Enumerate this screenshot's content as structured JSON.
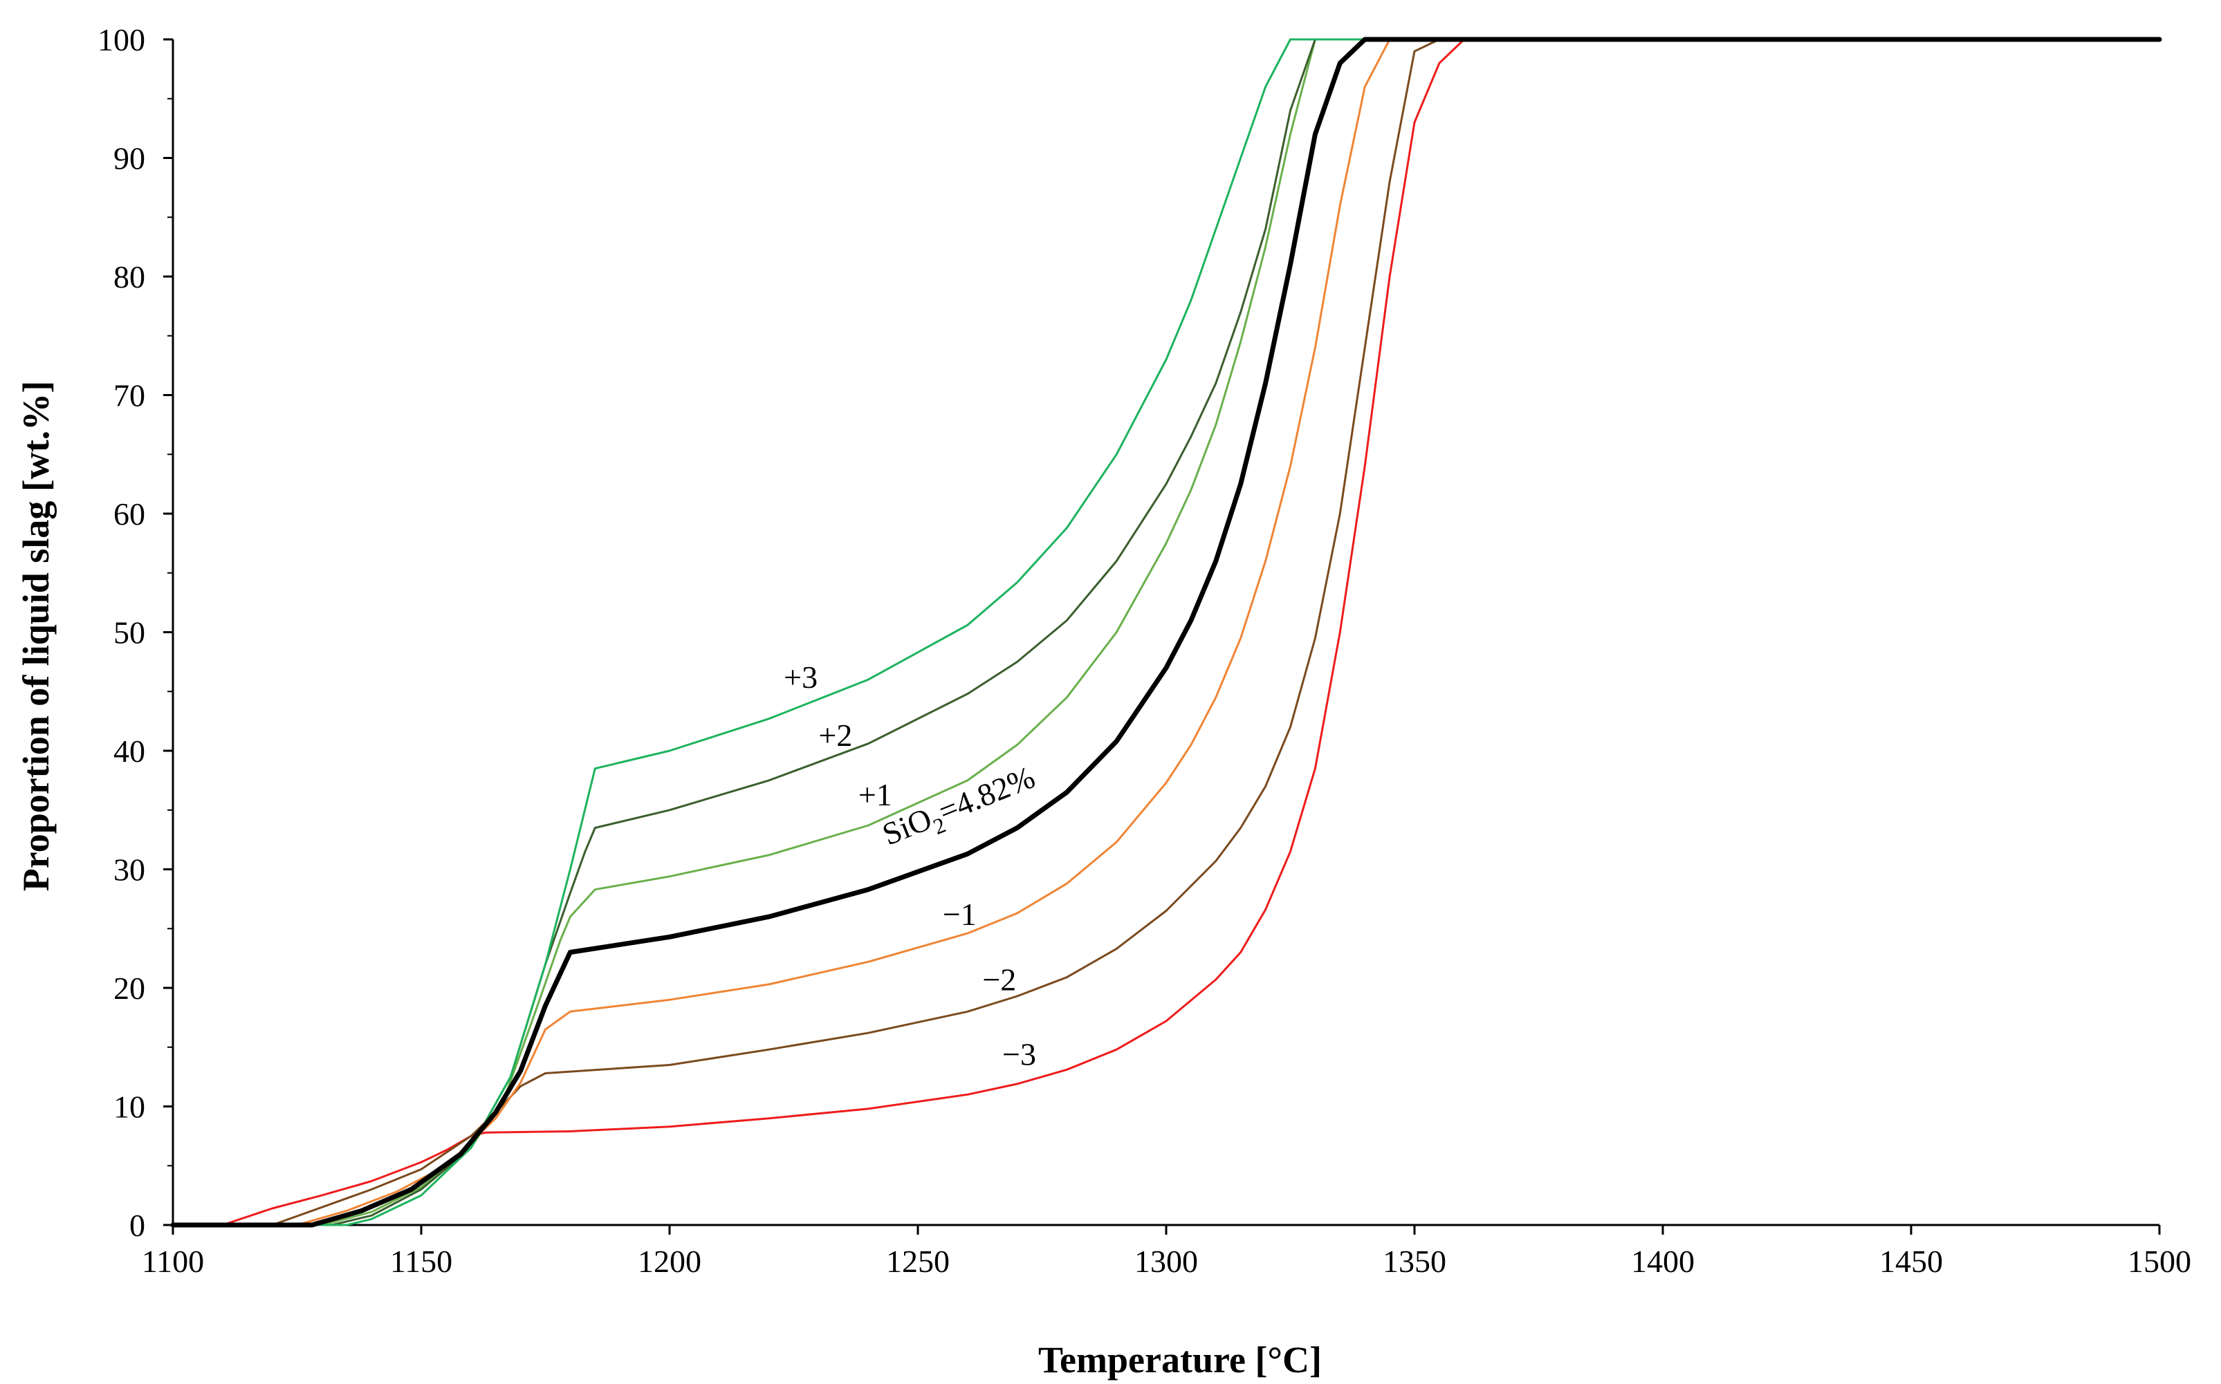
{
  "chart_data": {
    "type": "line",
    "title": "",
    "xlabel": "Temperature [°C]",
    "ylabel": "Proportion of liquid slag [wt.%]",
    "xlim": [
      1100,
      1500
    ],
    "ylim": [
      0,
      100
    ],
    "x_ticks": [
      "1100",
      "1150",
      "1200",
      "1250",
      "1300",
      "1350",
      "1400",
      "1450",
      "1500"
    ],
    "y_ticks": [
      "0",
      "10",
      "20",
      "30",
      "40",
      "50",
      "60",
      "70",
      "80",
      "90",
      "100"
    ],
    "grid": false,
    "series": [
      {
        "name": "−3",
        "label": "−3",
        "color": "#ee1c1c",
        "width": 3,
        "x": [
          1100,
          1110,
          1120,
          1130,
          1140,
          1150,
          1155,
          1160,
          1163,
          1180,
          1200,
          1220,
          1240,
          1260,
          1270,
          1280,
          1290,
          1300,
          1310,
          1315,
          1320,
          1325,
          1330,
          1335,
          1340,
          1345,
          1350,
          1355,
          1360,
          1500
        ],
        "y": [
          0,
          0,
          1.4,
          2.5,
          3.7,
          5.3,
          6.3,
          7.5,
          7.8,
          7.9,
          8.3,
          9.0,
          9.8,
          11.0,
          11.9,
          13.1,
          14.8,
          17.2,
          20.7,
          23.0,
          26.6,
          31.5,
          38.5,
          50.0,
          64.0,
          80.0,
          93.0,
          98.0,
          100,
          100
        ]
      },
      {
        "name": "−2",
        "label": "−2",
        "color": "#7b4a1e",
        "width": 3,
        "x": [
          1100,
          1120,
          1130,
          1140,
          1150,
          1160,
          1165,
          1170,
          1175,
          1200,
          1220,
          1240,
          1260,
          1270,
          1280,
          1290,
          1300,
          1310,
          1315,
          1320,
          1325,
          1330,
          1335,
          1340,
          1345,
          1350,
          1355,
          1500
        ],
        "y": [
          0,
          0,
          1.5,
          3.0,
          4.7,
          7.5,
          9.5,
          11.7,
          12.8,
          13.5,
          14.8,
          16.2,
          18.0,
          19.3,
          20.9,
          23.3,
          26.5,
          30.7,
          33.5,
          37.0,
          42.0,
          49.5,
          60.0,
          74.0,
          88.0,
          99.0,
          100,
          100
        ]
      },
      {
        "name": "−1",
        "label": "−1",
        "color": "#ef8535",
        "width": 3,
        "x": [
          1100,
          1125,
          1135,
          1145,
          1155,
          1165,
          1170,
          1175,
          1180,
          1200,
          1220,
          1240,
          1260,
          1270,
          1280,
          1290,
          1300,
          1305,
          1310,
          1315,
          1320,
          1325,
          1330,
          1335,
          1340,
          1345,
          1500
        ],
        "y": [
          0,
          0,
          1.2,
          2.8,
          5.0,
          9.0,
          12.0,
          16.5,
          18.0,
          19.0,
          20.3,
          22.2,
          24.6,
          26.3,
          28.8,
          32.3,
          37.3,
          40.5,
          44.5,
          49.5,
          56.0,
          64.0,
          74.0,
          86.0,
          96.0,
          100,
          100
        ]
      },
      {
        "name": "+1",
        "label": "+1",
        "color": "#6ab04c",
        "width": 3,
        "x": [
          1100,
          1130,
          1140,
          1150,
          1160,
          1167,
          1173,
          1178,
          1180,
          1185,
          1200,
          1220,
          1240,
          1260,
          1270,
          1280,
          1290,
          1300,
          1305,
          1310,
          1315,
          1320,
          1325,
          1330,
          1335,
          1500
        ],
        "y": [
          0,
          0,
          1.1,
          3.2,
          6.5,
          11.0,
          18.0,
          24.0,
          26.0,
          28.3,
          29.4,
          31.2,
          33.7,
          37.5,
          40.5,
          44.5,
          50.0,
          57.5,
          62.0,
          67.5,
          74.5,
          82.5,
          92.0,
          100,
          100,
          100
        ]
      },
      {
        "name": "+2",
        "label": "+2",
        "color": "#3c5f2e",
        "width": 3,
        "x": [
          1100,
          1132,
          1140,
          1150,
          1160,
          1168,
          1175,
          1180,
          1183,
          1185,
          1200,
          1220,
          1240,
          1260,
          1270,
          1280,
          1290,
          1300,
          1305,
          1310,
          1315,
          1320,
          1325,
          1330,
          1500
        ],
        "y": [
          0,
          0,
          0.8,
          3.0,
          6.5,
          12.5,
          22.0,
          28.0,
          31.5,
          33.5,
          35.0,
          37.5,
          40.6,
          44.8,
          47.5,
          51.0,
          56.0,
          62.5,
          66.5,
          71.0,
          77.0,
          84.0,
          94.0,
          100,
          100
        ]
      },
      {
        "name": "+3",
        "label": "+3",
        "color": "#1db35e",
        "width": 3,
        "x": [
          1100,
          1135,
          1140,
          1150,
          1160,
          1168,
          1175,
          1180,
          1185,
          1200,
          1220,
          1240,
          1260,
          1270,
          1280,
          1290,
          1300,
          1305,
          1310,
          1315,
          1320,
          1325,
          1500
        ],
        "y": [
          0,
          0,
          0.5,
          2.5,
          6.5,
          12.5,
          22.0,
          30.0,
          38.5,
          40.0,
          42.7,
          46.0,
          50.6,
          54.2,
          58.8,
          65.0,
          73.0,
          78.0,
          84.0,
          90.0,
          96.0,
          100,
          100
        ]
      },
      {
        "name": "SiO2=4.82%",
        "label": "SiO₂=4.82%",
        "color": "#000000",
        "width": 7,
        "x": [
          1100,
          1128,
          1138,
          1148,
          1158,
          1165,
          1170,
          1175,
          1180,
          1200,
          1220,
          1240,
          1260,
          1270,
          1280,
          1290,
          1300,
          1305,
          1310,
          1315,
          1320,
          1325,
          1330,
          1335,
          1340,
          1500
        ],
        "y": [
          0,
          0,
          1.2,
          3.0,
          6.0,
          9.5,
          13.0,
          18.5,
          23.0,
          24.3,
          26.0,
          28.3,
          31.3,
          33.5,
          36.5,
          40.8,
          47.0,
          51.0,
          56.0,
          62.5,
          71.0,
          81.0,
          92.0,
          98.0,
          100,
          100
        ]
      }
    ],
    "annotations": [
      {
        "text": "+3",
        "series": "+3",
        "x": 1223,
        "y": 45.3
      },
      {
        "text": "+2",
        "series": "+2",
        "x": 1230,
        "y": 40.4
      },
      {
        "text": "+1",
        "series": "+1",
        "x": 1238,
        "y": 35.4
      },
      {
        "text": "SiO₂=4.82%",
        "series": "SiO2=4.82%",
        "x": 1244,
        "y": 32.0
      },
      {
        "text": "−1",
        "series": "−1",
        "x": 1255,
        "y": 25.3
      },
      {
        "text": "−2",
        "series": "−2",
        "x": 1263,
        "y": 19.8
      },
      {
        "text": "−3",
        "series": "−3",
        "x": 1267,
        "y": 13.5
      }
    ]
  }
}
